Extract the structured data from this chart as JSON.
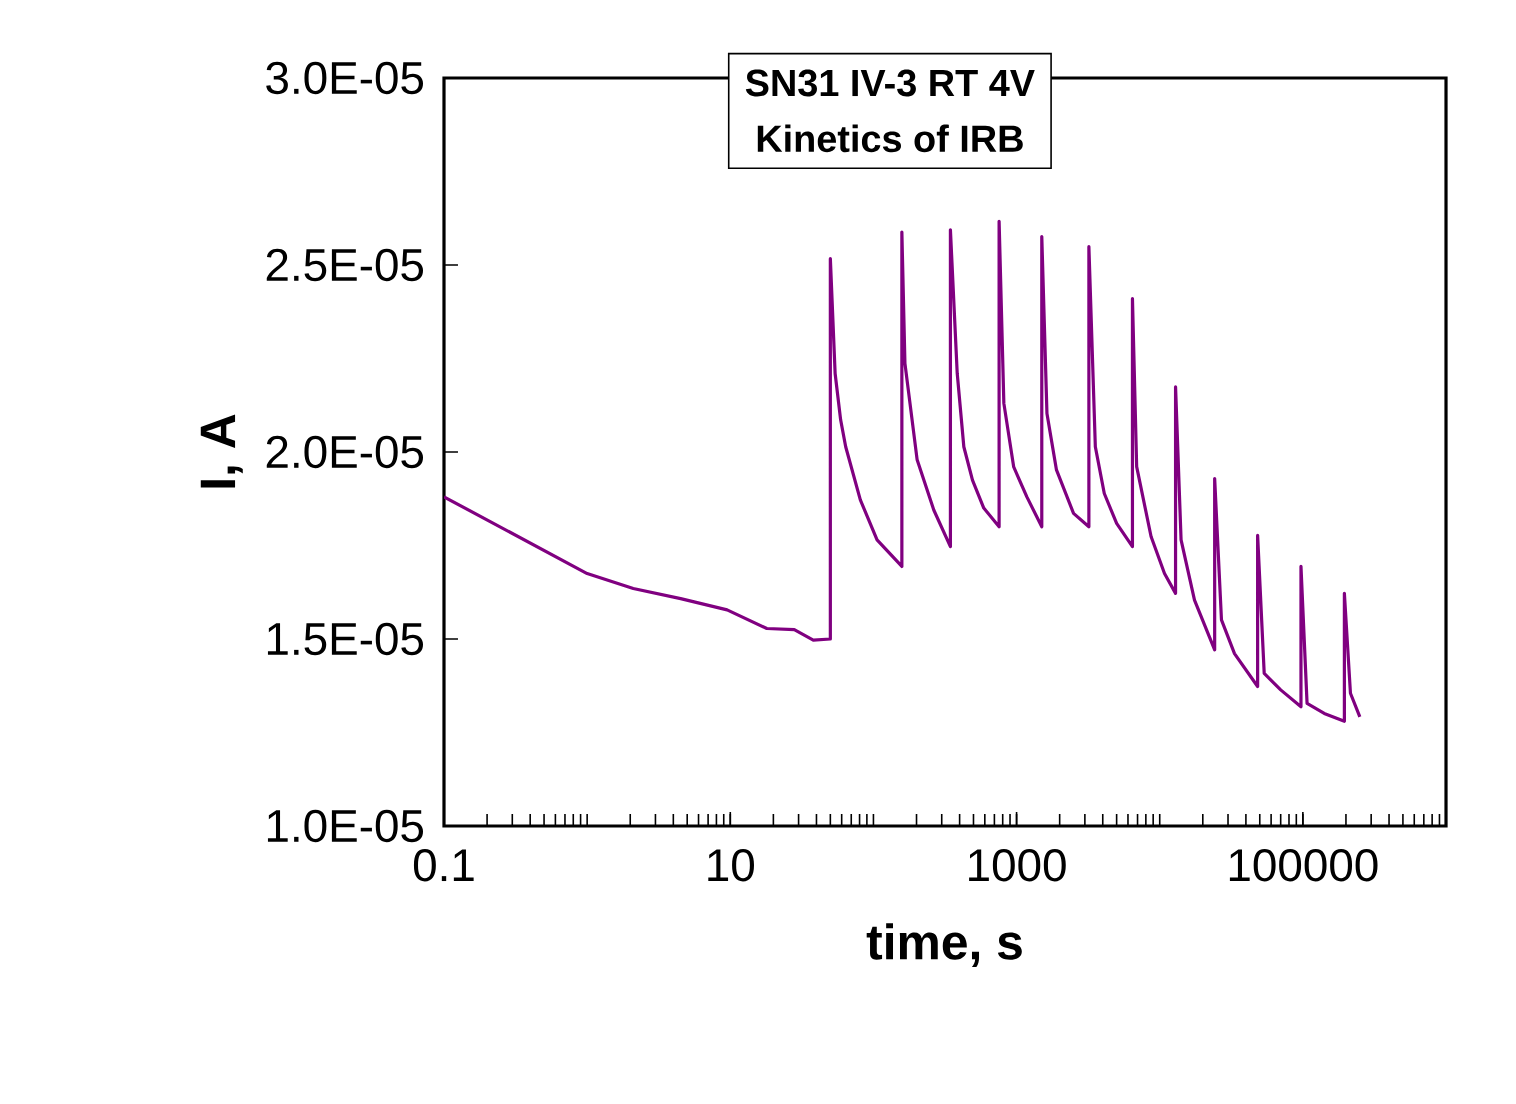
{
  "chart_data": {
    "type": "line",
    "title": "SN31 IV-3 RT 4V",
    "subtitle": "Kinetics of IRB",
    "xlabel": "time, s",
    "ylabel": "I, A",
    "log": "x",
    "xlim": [
      0.1,
      1000000
    ],
    "xticks": [
      0.1,
      10,
      1000,
      100000
    ],
    "ylim": [
      1e-05,
      3e-05
    ],
    "yticks": [
      {
        "value": 1e-05,
        "label": "1.0E-05"
      },
      {
        "value": 1.5e-05,
        "label": "1.5E-05"
      },
      {
        "value": 2e-05,
        "label": "2.0E-05"
      },
      {
        "value": 2.5e-05,
        "label": "2.5E-05"
      },
      {
        "value": 3e-05,
        "label": "3.0E-05"
      }
    ],
    "x": [
      0.1,
      1,
      2.1,
      4.5,
      9.5,
      18,
      28,
      38,
      50,
      50,
      54,
      59,
      64,
      81,
      106,
      158,
      158,
      166,
      202,
      264,
      345,
      345,
      385,
      428,
      492,
      590,
      755,
      755,
      815,
      955,
      1180,
      1500,
      1500,
      1630,
      1900,
      2500,
      3200,
      3200,
      3550,
      4100,
      5000,
      6450,
      6450,
      6900,
      8700,
      10800,
      12900,
      12900,
      14100,
      17500,
      24200,
      24200,
      27000,
      33300,
      48300,
      48300,
      53700,
      70000,
      97000,
      97000,
      107000,
      141000,
      195000,
      195000,
      215000,
      250000
    ],
    "series": [
      {
        "color": "#800080",
        "values": [
          1.88e-05,
          1.675e-05,
          1.635e-05,
          1.608e-05,
          1.578e-05,
          1.528e-05,
          1.525e-05,
          1.497e-05,
          1.5e-05,
          2.517e-05,
          2.21e-05,
          2.086e-05,
          2.014e-05,
          1.872e-05,
          1.765e-05,
          1.694e-05,
          2.588e-05,
          2.237e-05,
          1.979e-05,
          1.845e-05,
          1.747e-05,
          2.594e-05,
          2.21e-05,
          2.014e-05,
          1.925e-05,
          1.85e-05,
          1.8e-05,
          2.617e-05,
          2.13e-05,
          1.96e-05,
          1.88e-05,
          1.8e-05,
          2.576e-05,
          2.103e-05,
          1.952e-05,
          1.836e-05,
          1.8e-05,
          2.549e-05,
          2.014e-05,
          1.889e-05,
          1.809e-05,
          1.747e-05,
          2.41e-05,
          1.961e-05,
          1.774e-05,
          1.675e-05,
          1.622e-05,
          2.174e-05,
          1.765e-05,
          1.604e-05,
          1.471e-05,
          1.929e-05,
          1.551e-05,
          1.461e-05,
          1.373e-05,
          1.777e-05,
          1.408e-05,
          1.364e-05,
          1.319e-05,
          1.694e-05,
          1.328e-05,
          1.301e-05,
          1.28e-05,
          1.622e-05,
          1.355e-05,
          1.292e-05
        ]
      }
    ]
  }
}
